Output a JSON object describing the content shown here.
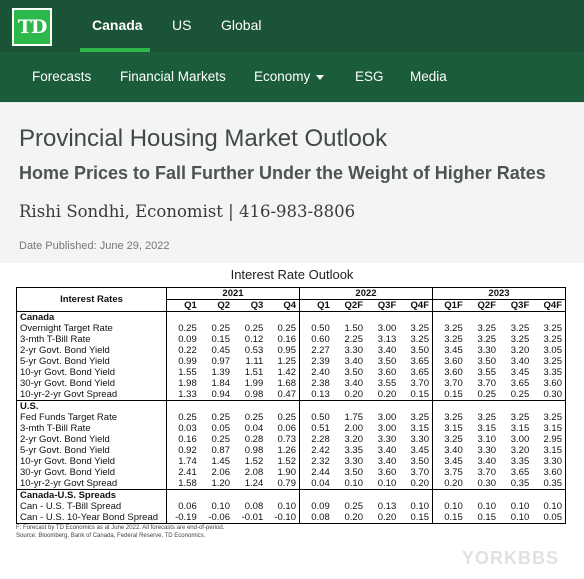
{
  "topbar": {
    "logo_text": "TD",
    "regions": [
      "Canada",
      "US",
      "Global"
    ],
    "active_region": "Canada"
  },
  "nav": {
    "items": [
      "Forecasts",
      "Financial Markets",
      "Economy",
      "ESG",
      "Media"
    ]
  },
  "header": {
    "title": "Provincial Housing Market Outlook",
    "subtitle": "Home Prices to Fall Further Under the Weight of Higher Rates",
    "author": "Rishi Sondhi, Economist | 416-983-8806",
    "published": "Date Published: June 29, 2022"
  },
  "table": {
    "title": "Interest Rate Outlook",
    "row_header": "Interest Rates",
    "years": [
      "2021",
      "2022",
      "2023"
    ],
    "quarters": [
      "Q1",
      "Q2",
      "Q3",
      "Q4",
      "Q1",
      "Q2F",
      "Q3F",
      "Q4F",
      "Q1F",
      "Q2F",
      "Q3F",
      "Q4F"
    ],
    "sections": [
      {
        "name": "Canada",
        "rows": [
          {
            "label": "Overnight Target Rate",
            "values": [
              "0.25",
              "0.25",
              "0.25",
              "0.25",
              "0.50",
              "1.50",
              "3.00",
              "3.25",
              "3.25",
              "3.25",
              "3.25",
              "3.25"
            ]
          },
          {
            "label": "3-mth T-Bill Rate",
            "values": [
              "0.09",
              "0.15",
              "0.12",
              "0.16",
              "0.60",
              "2.25",
              "3.13",
              "3.25",
              "3.25",
              "3.25",
              "3.25",
              "3.25"
            ]
          },
          {
            "label": "2-yr Govt. Bond Yield",
            "values": [
              "0.22",
              "0.45",
              "0.53",
              "0.95",
              "2.27",
              "3.30",
              "3.40",
              "3.50",
              "3.45",
              "3.30",
              "3.20",
              "3.05"
            ]
          },
          {
            "label": "5-yr Govt. Bond Yield",
            "values": [
              "0.99",
              "0.97",
              "1.11",
              "1.25",
              "2.39",
              "3.40",
              "3.50",
              "3.65",
              "3.60",
              "3.50",
              "3.40",
              "3.25"
            ]
          },
          {
            "label": "10-yr Govt. Bond Yield",
            "values": [
              "1.55",
              "1.39",
              "1.51",
              "1.42",
              "2.40",
              "3.50",
              "3.60",
              "3.65",
              "3.60",
              "3.55",
              "3.45",
              "3.35"
            ]
          },
          {
            "label": "30-yr Govt. Bond Yield",
            "values": [
              "1.98",
              "1.84",
              "1.99",
              "1.68",
              "2.38",
              "3.40",
              "3.55",
              "3.70",
              "3.70",
              "3.70",
              "3.65",
              "3.60"
            ]
          },
          {
            "label": "10-yr-2-yr Govt Spread",
            "values": [
              "1.33",
              "0.94",
              "0.98",
              "0.47",
              "0.13",
              "0.20",
              "0.20",
              "0.15",
              "0.15",
              "0.25",
              "0.25",
              "0.30"
            ]
          }
        ]
      },
      {
        "name": "U.S.",
        "rows": [
          {
            "label": "Fed Funds Target Rate",
            "values": [
              "0.25",
              "0.25",
              "0.25",
              "0.25",
              "0.50",
              "1.75",
              "3.00",
              "3.25",
              "3.25",
              "3.25",
              "3.25",
              "3.25"
            ]
          },
          {
            "label": "3-mth T-Bill Rate",
            "values": [
              "0.03",
              "0.05",
              "0.04",
              "0.06",
              "0.51",
              "2.00",
              "3.00",
              "3.15",
              "3.15",
              "3.15",
              "3.15",
              "3.15"
            ]
          },
          {
            "label": "2-yr Govt. Bond Yield",
            "values": [
              "0.16",
              "0.25",
              "0.28",
              "0.73",
              "2.28",
              "3.20",
              "3.30",
              "3.30",
              "3.25",
              "3.10",
              "3.00",
              "2.95"
            ]
          },
          {
            "label": "5-yr Govt. Bond Yield",
            "values": [
              "0.92",
              "0.87",
              "0.98",
              "1.26",
              "2.42",
              "3.35",
              "3.40",
              "3.45",
              "3.40",
              "3.30",
              "3.20",
              "3.15"
            ]
          },
          {
            "label": "10-yr Govt. Bond Yield",
            "values": [
              "1.74",
              "1.45",
              "1.52",
              "1.52",
              "2.32",
              "3.30",
              "3.40",
              "3.50",
              "3.45",
              "3.40",
              "3.35",
              "3.30"
            ]
          },
          {
            "label": "30-yr Govt. Bond Yield",
            "values": [
              "2.41",
              "2.06",
              "2.08",
              "1.90",
              "2.44",
              "3.50",
              "3.60",
              "3.70",
              "3.75",
              "3.70",
              "3.65",
              "3.60"
            ]
          },
          {
            "label": "10-yr-2-yr Govt Spread",
            "values": [
              "1.58",
              "1.20",
              "1.24",
              "0.79",
              "0.04",
              "0.10",
              "0.10",
              "0.20",
              "0.20",
              "0.30",
              "0.35",
              "0.35"
            ]
          }
        ]
      },
      {
        "name": "Canada-U.S. Spreads",
        "rows": [
          {
            "label": "Can - U.S. T-Bill Spread",
            "values": [
              "0.06",
              "0.10",
              "0.08",
              "0.10",
              "0.09",
              "0.25",
              "0.13",
              "0.10",
              "0.10",
              "0.10",
              "0.10",
              "0.10"
            ]
          },
          {
            "label": "Can - U.S. 10-Year Bond Spread",
            "values": [
              "-0.19",
              "-0.06",
              "-0.01",
              "-0.10",
              "0.08",
              "0.20",
              "0.20",
              "0.15",
              "0.15",
              "0.15",
              "0.10",
              "0.05"
            ]
          }
        ]
      }
    ],
    "footnote_1": "F: Forecast by TD Economics as at June 2022. All forecasts are end-of-period.",
    "footnote_2": "Source: Bloomberg, Bank of Canada, Federal Reserve, TD Economics."
  },
  "watermark": "YORKBBS"
}
